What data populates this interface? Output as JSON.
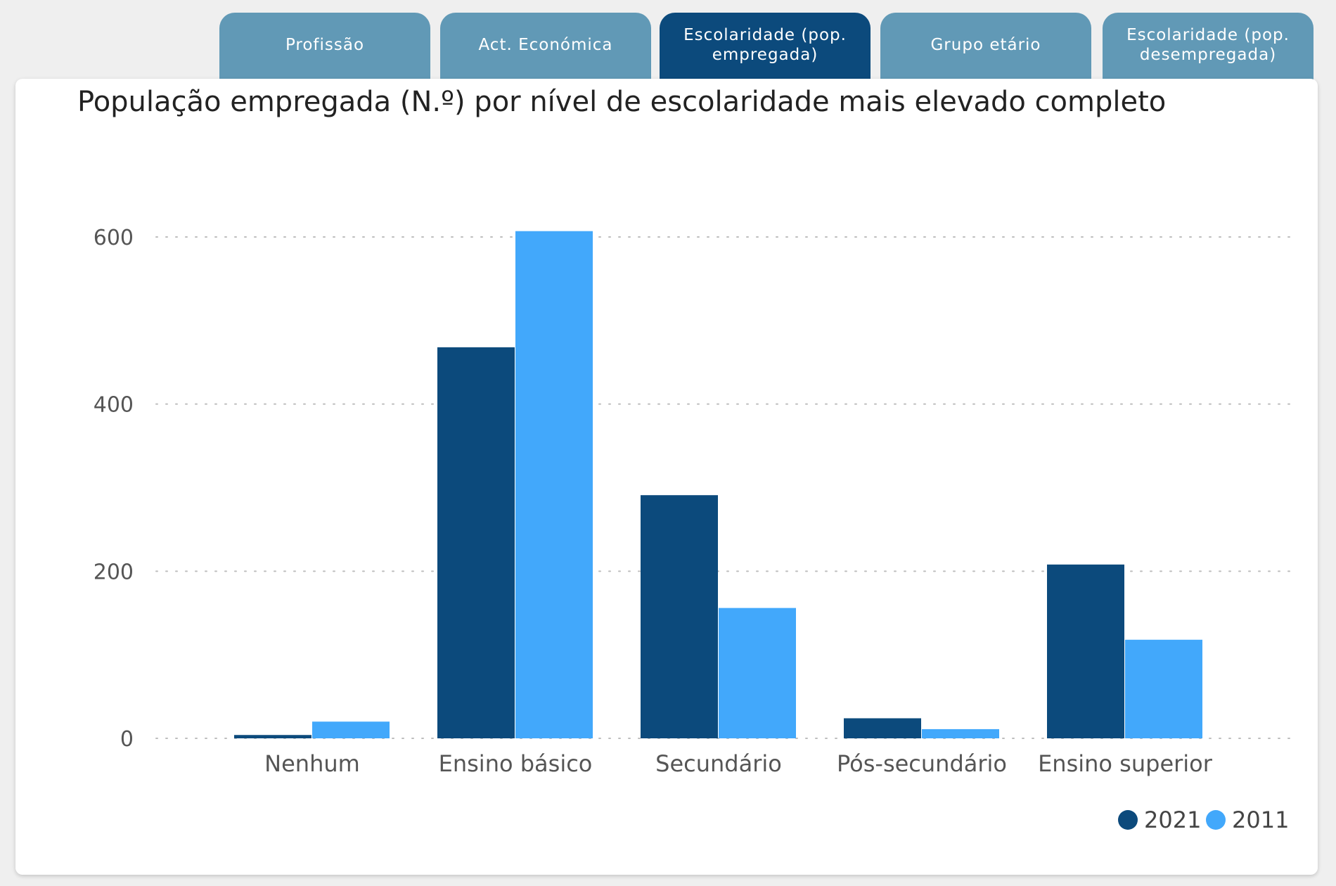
{
  "tabs": [
    {
      "label": "Profissão",
      "active": false
    },
    {
      "label": "Act. Económica",
      "active": false
    },
    {
      "label": "Escolaridade (pop. empregada)",
      "active": true
    },
    {
      "label": "Grupo etário",
      "active": false
    },
    {
      "label": "Escolaridade (pop. desempregada)",
      "active": false
    }
  ],
  "colors": {
    "series_2021": "#0c4a7c",
    "series_2011": "#42a8fb",
    "tab": "#6199b6",
    "tab_active": "#0c4a7c"
  },
  "chart_data": {
    "type": "bar",
    "title": "População empregada (N.º) por nível de escolaridade mais elevado completo",
    "categories": [
      "Nenhum",
      "Ensino básico",
      "Secundário",
      "Pós-secundário",
      "Ensino superior"
    ],
    "series": [
      {
        "name": "2021",
        "values": [
          4,
          468,
          291,
          24,
          208
        ]
      },
      {
        "name": "2011",
        "values": [
          20,
          607,
          156,
          11,
          118
        ]
      }
    ],
    "yticks": [
      0,
      200,
      400,
      600
    ],
    "ylim": [
      0,
      620
    ],
    "xlabel": "",
    "ylabel": "",
    "grid": true,
    "legend": "bottom-right"
  }
}
